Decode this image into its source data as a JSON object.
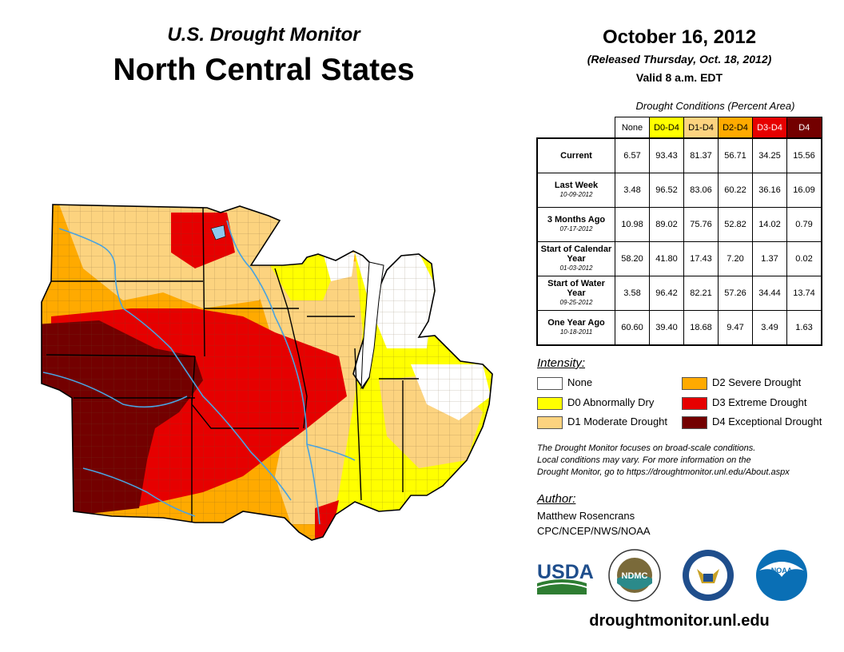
{
  "header": {
    "supertitle": "U.S. Drought Monitor",
    "title": "North Central States",
    "date": "October 16, 2012",
    "released": "(Released Thursday, Oct. 18, 2012)",
    "valid": "Valid 8 a.m. EDT"
  },
  "table": {
    "caption": "Drought Conditions (Percent Area)",
    "columns": [
      {
        "label": "None",
        "color": "#ffffff",
        "text_color": "#000000"
      },
      {
        "label": "D0-D4",
        "color": "#ffff00",
        "text_color": "#000000"
      },
      {
        "label": "D1-D4",
        "color": "#fcd37f",
        "text_color": "#000000"
      },
      {
        "label": "D2-D4",
        "color": "#ffaa00",
        "text_color": "#000000"
      },
      {
        "label": "D3-D4",
        "color": "#e60000",
        "text_color": "#ffffff"
      },
      {
        "label": "D4",
        "color": "#730000",
        "text_color": "#ffffff"
      }
    ],
    "rows": [
      {
        "label": "Current",
        "date": "",
        "values": [
          "6.57",
          "93.43",
          "81.37",
          "56.71",
          "34.25",
          "15.56"
        ]
      },
      {
        "label": "Last Week",
        "date": "10-09-2012",
        "values": [
          "3.48",
          "96.52",
          "83.06",
          "60.22",
          "36.16",
          "16.09"
        ]
      },
      {
        "label": "3 Months Ago",
        "date": "07-17-2012",
        "values": [
          "10.98",
          "89.02",
          "75.76",
          "52.82",
          "14.02",
          "0.79"
        ]
      },
      {
        "label": "Start of Calendar Year",
        "date": "01-03-2012",
        "values": [
          "58.20",
          "41.80",
          "17.43",
          "7.20",
          "1.37",
          "0.02"
        ]
      },
      {
        "label": "Start of Water Year",
        "date": "09-25-2012",
        "values": [
          "3.58",
          "96.42",
          "82.21",
          "57.26",
          "34.44",
          "13.74"
        ]
      },
      {
        "label": "One Year Ago",
        "date": "10-18-2011",
        "values": [
          "60.60",
          "39.40",
          "18.68",
          "9.47",
          "3.49",
          "1.63"
        ]
      }
    ]
  },
  "legend": {
    "title": "Intensity:",
    "items": [
      {
        "label": "None",
        "color": "#ffffff"
      },
      {
        "label": "D0 Abnormally Dry",
        "color": "#ffff00"
      },
      {
        "label": "D1 Moderate Drought",
        "color": "#fcd37f"
      },
      {
        "label": "D2 Severe Drought",
        "color": "#ffaa00"
      },
      {
        "label": "D3 Extreme Drought",
        "color": "#e60000"
      },
      {
        "label": "D4 Exceptional Drought",
        "color": "#730000"
      }
    ]
  },
  "note": {
    "line1": "The Drought Monitor focuses on broad-scale conditions.",
    "line2": "Local conditions may vary. For more information on the",
    "line3": "Drought Monitor, go to https://droughtmonitor.unl.edu/About.aspx"
  },
  "author": {
    "heading": "Author:",
    "name": "Matthew Rosencrans",
    "org": "CPC/NCEP/NWS/NOAA"
  },
  "logos": {
    "usda": "USDA",
    "ndmc": "NDMC",
    "noaa": "NOAA"
  },
  "footer": {
    "url": "droughtmonitor.unl.edu"
  }
}
